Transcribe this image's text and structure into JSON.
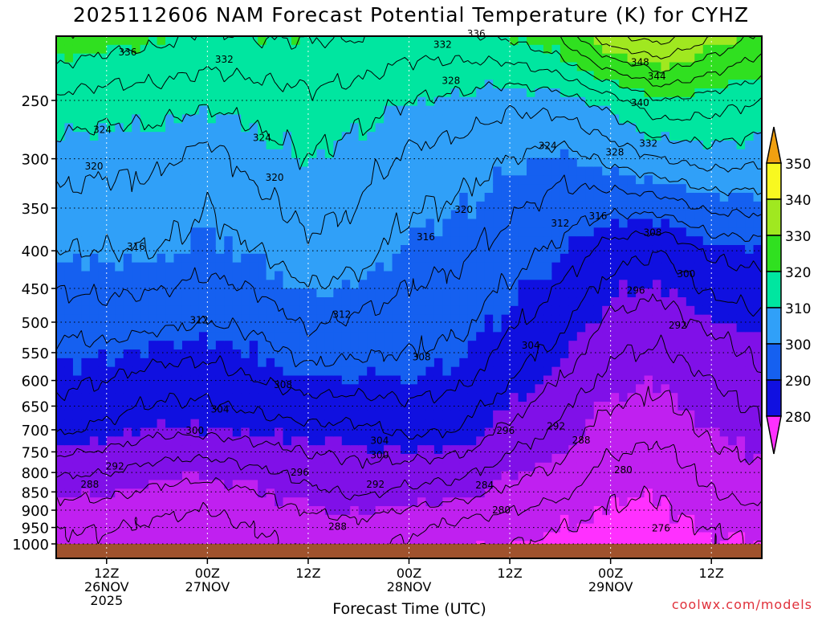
{
  "chart_data": {
    "type": "heatmap",
    "title": "2025112606 NAM Forecast Potential Temperature (K) for CYHZ",
    "xlabel": "Forecast Time (UTC)",
    "ylabel": "",
    "x_tick_labels": [
      {
        "hours": 6,
        "lines": [
          "12Z",
          "26NOV",
          "2025"
        ]
      },
      {
        "hours": 18,
        "lines": [
          "00Z",
          "27NOV"
        ]
      },
      {
        "hours": 30,
        "lines": [
          "12Z"
        ]
      },
      {
        "hours": 42,
        "lines": [
          "00Z",
          "28NOV"
        ]
      },
      {
        "hours": 54,
        "lines": [
          "12Z"
        ]
      },
      {
        "hours": 66,
        "lines": [
          "00Z",
          "29NOV"
        ]
      },
      {
        "hours": 78,
        "lines": [
          "12Z"
        ]
      }
    ],
    "xlim_hours": [
      0,
      84
    ],
    "y_scale": "log-pressure",
    "ylim_hPa": [
      1000,
      200
    ],
    "y_ticks_hPa": [
      250,
      300,
      350,
      400,
      450,
      500,
      550,
      600,
      650,
      700,
      750,
      800,
      850,
      900,
      950,
      1000
    ],
    "colorbar": {
      "levels": [
        280,
        290,
        300,
        310,
        320,
        330,
        340,
        350
      ],
      "colors": [
        "#ff30ff",
        "#c020f0",
        "#8010e8",
        "#1010e0",
        "#1560f0",
        "#30a0f8",
        "#00e6a0",
        "#30e020",
        "#a0e820",
        "#f8f820",
        "#f0a010"
      ]
    },
    "contour_interval_K": 4,
    "ground_color": "#a0522d",
    "contour_labels": [
      {
        "v": "336",
        "h": 8.5,
        "p": 215
      },
      {
        "v": "332",
        "h": 20,
        "p": 220
      },
      {
        "v": "332",
        "h": 46,
        "p": 210
      },
      {
        "v": "336",
        "h": 50,
        "p": 203
      },
      {
        "v": "328",
        "h": 47,
        "p": 235
      },
      {
        "v": "348",
        "h": 69.5,
        "p": 222
      },
      {
        "v": "344",
        "h": 71.5,
        "p": 232
      },
      {
        "v": "340",
        "h": 69.5,
        "p": 252
      },
      {
        "v": "324",
        "h": 5.5,
        "p": 274
      },
      {
        "v": "324",
        "h": 24.5,
        "p": 281
      },
      {
        "v": "324",
        "h": 58.5,
        "p": 288
      },
      {
        "v": "328",
        "h": 66.5,
        "p": 294
      },
      {
        "v": "332",
        "h": 70.5,
        "p": 286
      },
      {
        "v": "320",
        "h": 4.5,
        "p": 307
      },
      {
        "v": "320",
        "h": 26,
        "p": 318
      },
      {
        "v": "320",
        "h": 48.5,
        "p": 352
      },
      {
        "v": "316",
        "h": 44,
        "p": 383
      },
      {
        "v": "312",
        "h": 60,
        "p": 367
      },
      {
        "v": "316",
        "h": 64.5,
        "p": 359
      },
      {
        "v": "308",
        "h": 71,
        "p": 378
      },
      {
        "v": "316",
        "h": 9.5,
        "p": 395
      },
      {
        "v": "300",
        "h": 75,
        "p": 430
      },
      {
        "v": "296",
        "h": 69,
        "p": 453
      },
      {
        "v": "312",
        "h": 17,
        "p": 497
      },
      {
        "v": "312",
        "h": 34,
        "p": 488
      },
      {
        "v": "292",
        "h": 74,
        "p": 505
      },
      {
        "v": "304",
        "h": 56.5,
        "p": 538
      },
      {
        "v": "308",
        "h": 43.5,
        "p": 558
      },
      {
        "v": "308",
        "h": 27,
        "p": 608
      },
      {
        "v": "304",
        "h": 19.5,
        "p": 657
      },
      {
        "v": "300",
        "h": 16.5,
        "p": 702
      },
      {
        "v": "304",
        "h": 38.5,
        "p": 724
      },
      {
        "v": "300",
        "h": 38.5,
        "p": 758
      },
      {
        "v": "296",
        "h": 53.5,
        "p": 702
      },
      {
        "v": "292",
        "h": 59.5,
        "p": 692
      },
      {
        "v": "288",
        "h": 62.5,
        "p": 723
      },
      {
        "v": "292",
        "h": 7,
        "p": 785
      },
      {
        "v": "288",
        "h": 4,
        "p": 830
      },
      {
        "v": "296",
        "h": 29,
        "p": 800
      },
      {
        "v": "292",
        "h": 38,
        "p": 830
      },
      {
        "v": "284",
        "h": 51,
        "p": 832
      },
      {
        "v": "280",
        "h": 67.5,
        "p": 794
      },
      {
        "v": "280",
        "h": 53,
        "p": 900
      },
      {
        "v": "288",
        "h": 33.5,
        "p": 947
      },
      {
        "v": "276",
        "h": 72,
        "p": 952
      }
    ]
  },
  "credit": "coolwx.com/models"
}
